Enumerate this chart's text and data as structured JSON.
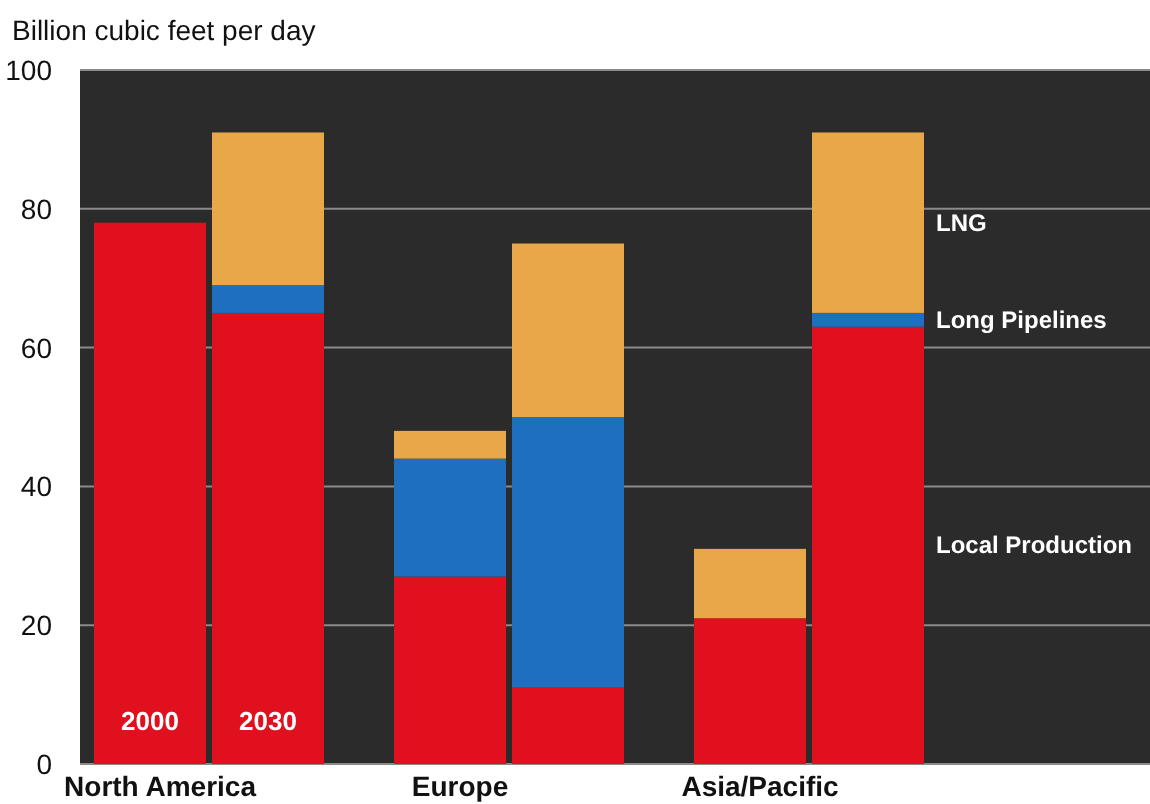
{
  "chart_data": {
    "type": "bar",
    "stacked": true,
    "ylabel": "Billion cubic feet per day",
    "categories": [
      "North America",
      null,
      "Europe",
      null,
      "Asia/Pacific",
      null
    ],
    "series": [
      {
        "name": "Local Production",
        "color": "#e0101e",
        "values": [
          78,
          65,
          27,
          11,
          21,
          63
        ]
      },
      {
        "name": "Long Pipelines",
        "color": "#1f6fc0",
        "values": [
          0,
          4,
          17,
          39,
          0,
          2
        ]
      },
      {
        "name": "LNG",
        "color": "#e8a84a",
        "values": [
          0,
          22,
          4,
          25,
          10,
          26
        ]
      }
    ],
    "annotations": [
      "2000",
      "2030"
    ],
    "ylim": [
      0,
      100
    ],
    "yticks": [
      0,
      20,
      40,
      60,
      80,
      100
    ],
    "grid": "y"
  }
}
